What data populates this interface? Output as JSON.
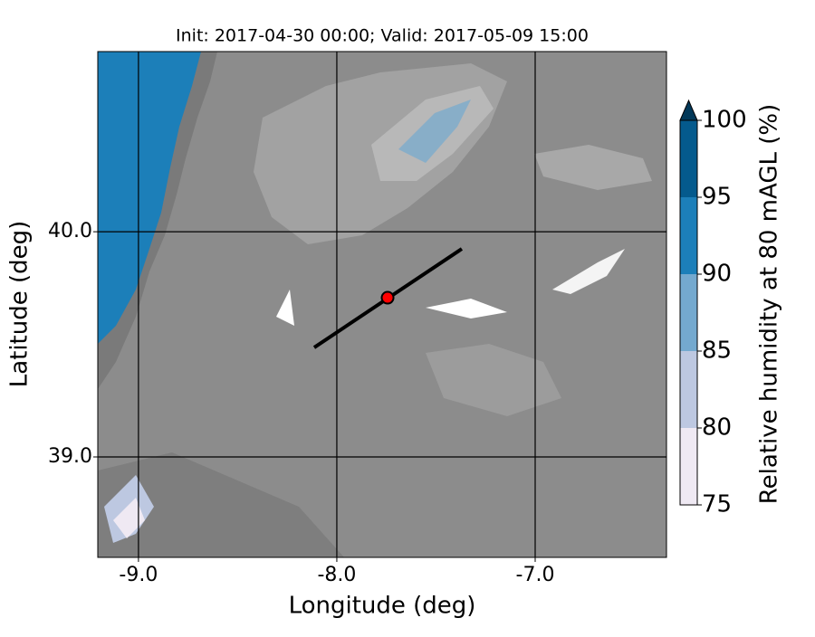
{
  "chart_data": {
    "type": "contour-map",
    "title": "Init: 2017-04-30 00:00; Valid: 2017-05-09 15:00",
    "x_label": "Longitude (deg)",
    "y_label": "Latitude (deg)",
    "xlim": [
      -9.205,
      -6.338
    ],
    "ylim": [
      38.554,
      40.8
    ],
    "xticks": [
      {
        "value": -9,
        "label": "-9.0"
      },
      {
        "value": -8,
        "label": "-8.0"
      },
      {
        "value": -7,
        "label": "-7.0"
      }
    ],
    "yticks": [
      {
        "value": 39,
        "label": "39.0"
      },
      {
        "value": 40,
        "label": "40.0"
      }
    ],
    "grid": true,
    "transect": {
      "lon": [
        -8.114,
        -7.37
      ],
      "lat": [
        39.486,
        39.924
      ],
      "color": "#000000"
    },
    "site": {
      "lon": -7.744,
      "lat": 39.707,
      "color": "#ff0000"
    },
    "colorbar": {
      "label": "Relative humidity at 80 mAGL (%)",
      "levels": [
        75,
        80,
        85,
        90,
        95,
        100
      ],
      "colors": [
        "#efe9f3",
        "#bdc8e1",
        "#74a9cf",
        "#1c7fb9",
        "#045a8d"
      ],
      "extend_color": "#023858"
    }
  }
}
